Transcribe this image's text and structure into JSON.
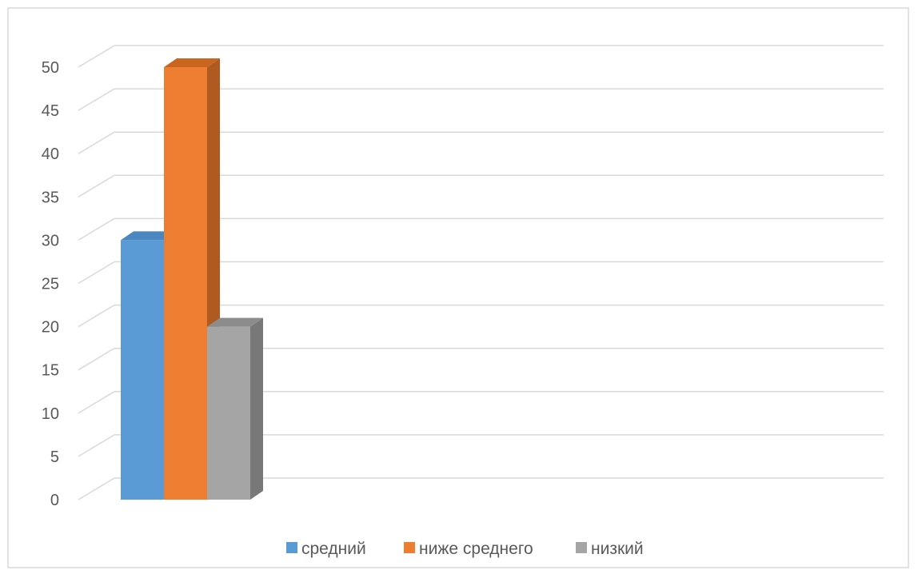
{
  "chart_data": {
    "type": "bar",
    "categories": [
      ""
    ],
    "series": [
      {
        "name": "средний",
        "values": [
          30
        ],
        "color": "#5B9BD5",
        "side_color": "#41719C",
        "top_color": "#4A86C0"
      },
      {
        "name": "ниже среднего",
        "values": [
          50
        ],
        "color": "#ED7D31",
        "side_color": "#AE5A21",
        "top_color": "#C9651F"
      },
      {
        "name": "низкий",
        "values": [
          20
        ],
        "color": "#A5A5A5",
        "side_color": "#787878",
        "top_color": "#8C8C8C"
      }
    ],
    "yticks": [
      "0",
      "5",
      "10",
      "15",
      "20",
      "25",
      "30",
      "35",
      "40",
      "45",
      "50"
    ],
    "ylim": [
      0,
      50
    ],
    "grid": true,
    "three_d": true,
    "legend_position": "bottom"
  }
}
